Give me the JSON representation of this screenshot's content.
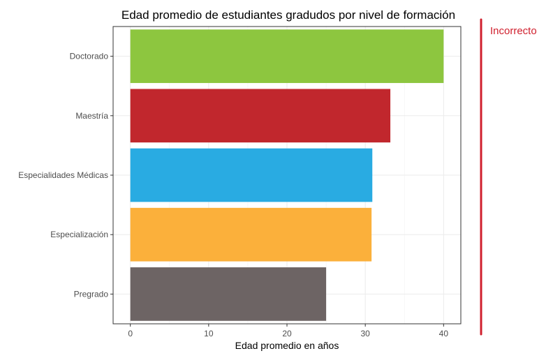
{
  "chart_data": {
    "type": "bar",
    "orientation": "horizontal",
    "title": "Edad promedio de estudiantes gradudos por nivel de formación",
    "xlabel": "Edad promedio en años",
    "ylabel": "",
    "categories": [
      "Doctorado",
      "Maestría",
      "Especialidades Médicas",
      "Especialización",
      "Pregrado"
    ],
    "values": [
      40.0,
      33.2,
      30.9,
      30.8,
      25.0
    ],
    "colors": [
      "#8dc63f",
      "#c1272d",
      "#29abe2",
      "#fbb03b",
      "#6d6464"
    ],
    "xlim": [
      -2.2,
      42.2
    ],
    "xticks": [
      0,
      10,
      20,
      30,
      40
    ],
    "grid": true,
    "legend": "none"
  },
  "annotation": {
    "label": "Incorrecto",
    "color": "#d0202e"
  }
}
